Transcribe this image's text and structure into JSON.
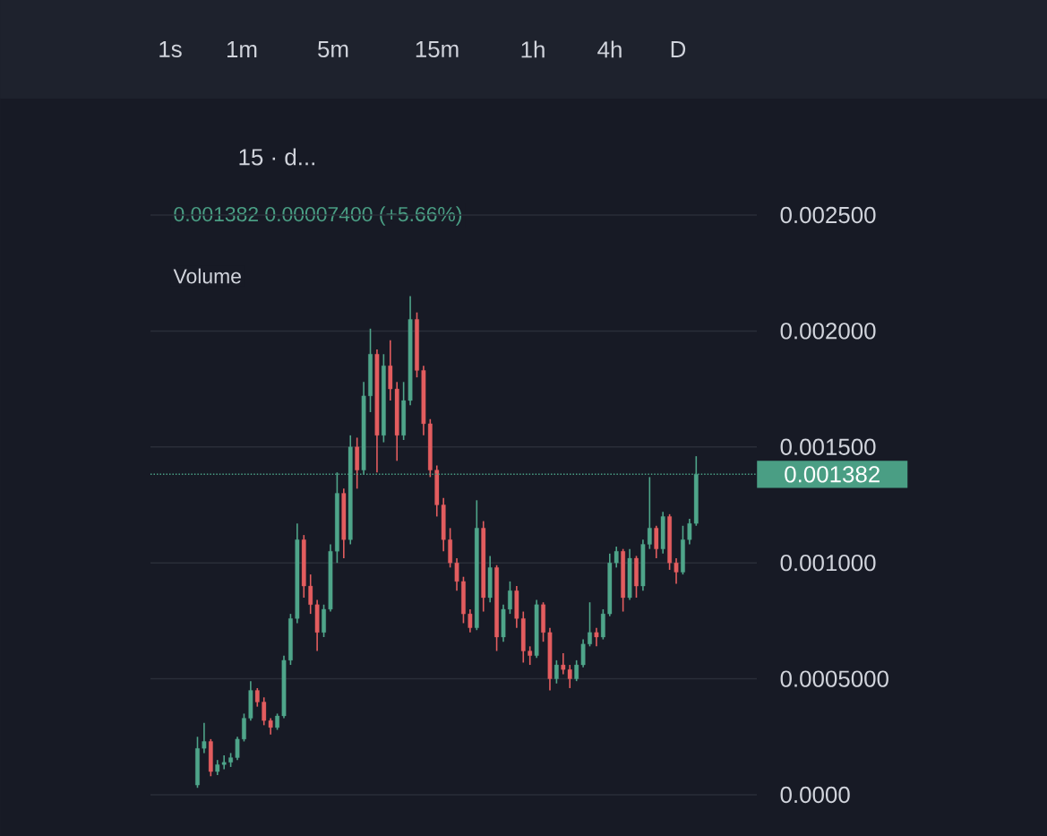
{
  "chart_data": {
    "type": "candlestick",
    "title": "15 · d...",
    "annotations": [
      "1s",
      "1m",
      "5m",
      "15m",
      "1h",
      "4h",
      "D",
      "0.001382  0.00007400 (+5.66%)",
      "Volume"
    ],
    "categories": [
      null,
      null,
      null,
      null,
      null,
      null,
      null,
      null,
      null,
      null,
      null,
      null,
      null,
      null,
      null,
      null,
      null,
      null,
      null,
      null,
      null,
      null,
      null,
      null,
      null,
      null,
      null,
      null,
      null,
      null,
      null,
      null,
      null,
      null,
      null,
      null,
      null,
      null,
      null,
      null,
      null,
      null,
      null,
      null,
      null,
      null,
      null,
      null,
      null,
      null,
      null,
      null,
      null,
      null,
      null,
      null,
      null,
      null,
      null,
      null,
      null,
      null,
      null,
      null,
      null,
      null,
      null,
      null,
      null,
      null,
      null,
      null,
      null,
      null,
      null,
      null
    ],
    "ohlc": [
      [
        4.2e-05,
        0.00025,
        3e-05,
        0.0002
      ],
      [
        0.0002,
        0.00031,
        0.00018,
        0.00023
      ],
      [
        0.00023,
        0.00024,
        8e-05,
        0.0001
      ],
      [
        0.0001,
        0.00015,
        8.5e-05,
        0.00013
      ],
      [
        0.00013,
        0.00017,
        0.00011,
        0.00014
      ],
      [
        0.00014,
        0.00018,
        0.00012,
        0.00016
      ],
      [
        0.00016,
        0.00025,
        0.00015,
        0.00024
      ],
      [
        0.00024,
        0.00035,
        0.00023,
        0.00033
      ],
      [
        0.00033,
        0.00049,
        0.00032,
        0.00045
      ],
      [
        0.00045,
        0.00046,
        0.00038,
        0.0004
      ],
      [
        0.0004,
        0.00042,
        0.0003,
        0.00032
      ],
      [
        0.00032,
        0.00033,
        0.00026,
        0.00029
      ],
      [
        0.00029,
        0.00035,
        0.00028,
        0.00034
      ],
      [
        0.00034,
        0.0006,
        0.00033,
        0.00058
      ],
      [
        0.00058,
        0.00078,
        0.00056,
        0.00076
      ],
      [
        0.00076,
        0.00117,
        0.00074,
        0.0011
      ],
      [
        0.0011,
        0.00112,
        0.00085,
        0.0009
      ],
      [
        0.0009,
        0.00095,
        0.00078,
        0.00082
      ],
      [
        0.00082,
        0.00084,
        0.00062,
        0.0007
      ],
      [
        0.0007,
        0.00082,
        0.00068,
        0.0008
      ],
      [
        0.0008,
        0.00108,
        0.00079,
        0.00105
      ],
      [
        0.00105,
        0.00139,
        0.001,
        0.0013
      ],
      [
        0.0013,
        0.00132,
        0.00102,
        0.0011
      ],
      [
        0.0011,
        0.00155,
        0.00108,
        0.0015
      ],
      [
        0.0015,
        0.00154,
        0.00132,
        0.0014
      ],
      [
        0.0014,
        0.00178,
        0.00138,
        0.00172
      ],
      [
        0.00172,
        0.00201,
        0.00165,
        0.0019
      ],
      [
        0.0019,
        0.00192,
        0.00139,
        0.00155
      ],
      [
        0.00155,
        0.0019,
        0.00152,
        0.00185
      ],
      [
        0.00185,
        0.00196,
        0.0017,
        0.00175
      ],
      [
        0.00175,
        0.00178,
        0.00144,
        0.00155
      ],
      [
        0.00155,
        0.00178,
        0.00153,
        0.0017
      ],
      [
        0.0017,
        0.00215,
        0.00168,
        0.00205
      ],
      [
        0.00205,
        0.00208,
        0.0018,
        0.00183
      ],
      [
        0.00183,
        0.00185,
        0.00155,
        0.0016
      ],
      [
        0.0016,
        0.00162,
        0.00137,
        0.0014
      ],
      [
        0.0014,
        0.00142,
        0.0012,
        0.00125
      ],
      [
        0.00125,
        0.00128,
        0.00105,
        0.0011
      ],
      [
        0.0011,
        0.00115,
        0.00098,
        0.001
      ],
      [
        0.001,
        0.00102,
        0.00088,
        0.00092
      ],
      [
        0.00092,
        0.00094,
        0.00074,
        0.00078
      ],
      [
        0.00078,
        0.0008,
        0.0007,
        0.00072
      ],
      [
        0.00072,
        0.00127,
        0.00071,
        0.00115
      ],
      [
        0.00115,
        0.00118,
        0.00079,
        0.00085
      ],
      [
        0.00085,
        0.00103,
        0.00083,
        0.00098
      ],
      [
        0.00098,
        0.00099,
        0.00062,
        0.00068
      ],
      [
        0.00068,
        0.00082,
        0.00066,
        0.0008
      ],
      [
        0.0008,
        0.00092,
        0.00078,
        0.00088
      ],
      [
        0.00088,
        0.0009,
        0.00072,
        0.00076
      ],
      [
        0.00076,
        0.00079,
        0.00057,
        0.00062
      ],
      [
        0.00062,
        0.00064,
        0.00056,
        0.0006
      ],
      [
        0.0006,
        0.00084,
        0.00059,
        0.00082
      ],
      [
        0.00082,
        0.00083,
        0.00066,
        0.0007
      ],
      [
        0.0007,
        0.00072,
        0.00045,
        0.0005
      ],
      [
        0.0005,
        0.00058,
        0.00048,
        0.00056
      ],
      [
        0.00056,
        0.00061,
        0.00052,
        0.00054
      ],
      [
        0.00054,
        0.00056,
        0.00046,
        0.0005
      ],
      [
        0.0005,
        0.00058,
        0.00049,
        0.00056
      ],
      [
        0.00056,
        0.00067,
        0.00055,
        0.00065
      ],
      [
        0.00065,
        0.00083,
        0.00064,
        0.0007
      ],
      [
        0.0007,
        0.00072,
        0.00064,
        0.00068
      ],
      [
        0.00068,
        0.0008,
        0.00067,
        0.00078
      ],
      [
        0.00078,
        0.00104,
        0.00077,
        0.001
      ],
      [
        0.001,
        0.00107,
        0.00098,
        0.00105
      ],
      [
        0.00105,
        0.00106,
        0.00079,
        0.00085
      ],
      [
        0.00085,
        0.00106,
        0.00084,
        0.00102
      ],
      [
        0.00102,
        0.00103,
        0.00085,
        0.0009
      ],
      [
        0.0009,
        0.0011,
        0.00088,
        0.00108
      ],
      [
        0.00108,
        0.00137,
        0.00106,
        0.00115
      ],
      [
        0.00115,
        0.00116,
        0.00102,
        0.00106
      ],
      [
        0.00106,
        0.00122,
        0.00104,
        0.0012
      ],
      [
        0.0012,
        0.00121,
        0.00097,
        0.001
      ],
      [
        0.001,
        0.00102,
        0.00091,
        0.00096
      ],
      [
        0.00096,
        0.00116,
        0.00095,
        0.0011
      ],
      [
        0.0011,
        0.00119,
        0.00108,
        0.00117
      ],
      [
        0.00117,
        0.00146,
        0.00116,
        0.001382
      ]
    ],
    "colors": [
      "#4fa58a",
      "#4fa58a",
      "#e35d5f",
      "#4fa58a",
      "#4fa58a",
      "#4fa58a",
      "#4fa58a",
      "#4fa58a",
      "#4fa58a",
      "#e35d5f",
      "#e35d5f",
      "#e35d5f",
      "#4fa58a",
      "#4fa58a",
      "#4fa58a",
      "#4fa58a",
      "#e35d5f",
      "#e35d5f",
      "#e35d5f",
      "#4fa58a",
      "#4fa58a",
      "#4fa58a",
      "#e35d5f",
      "#4fa58a",
      "#e35d5f",
      "#4fa58a",
      "#4fa58a",
      "#e35d5f",
      "#4fa58a",
      "#e35d5f",
      "#e35d5f",
      "#4fa58a",
      "#4fa58a",
      "#e35d5f",
      "#e35d5f",
      "#e35d5f",
      "#e35d5f",
      "#e35d5f",
      "#e35d5f",
      "#e35d5f",
      "#e35d5f",
      "#e35d5f",
      "#4fa58a",
      "#e35d5f",
      "#4fa58a",
      "#e35d5f",
      "#4fa58a",
      "#4fa58a",
      "#e35d5f",
      "#e35d5f",
      "#e35d5f",
      "#4fa58a",
      "#e35d5f",
      "#e35d5f",
      "#4fa58a",
      "#e35d5f",
      "#e35d5f",
      "#4fa58a",
      "#4fa58a",
      "#4fa58a",
      "#e35d5f",
      "#4fa58a",
      "#4fa58a",
      "#4fa58a",
      "#e35d5f",
      "#4fa58a",
      "#e35d5f",
      "#4fa58a",
      "#4fa58a",
      "#e35d5f",
      "#4fa58a",
      "#e35d5f",
      "#e35d5f",
      "#4fa58a",
      "#4fa58a",
      "#4fa58a"
    ],
    "ylim": [
      0,
      0.0025
    ],
    "yticks": [
      {
        "value": 0,
        "label": "0.0000"
      },
      {
        "value": 0.0005,
        "label": "0.0005000"
      },
      {
        "value": 0.001,
        "label": "0.001000"
      },
      {
        "value": 0.0015,
        "label": "0.001500"
      },
      {
        "value": 0.002,
        "label": "0.002000"
      },
      {
        "value": 0.0025,
        "label": "0.002500"
      }
    ],
    "grid": "y",
    "ref_lines": [
      {
        "axis": "y",
        "value": 0.001382,
        "label": "0.001382",
        "color": "#4a9e84",
        "line_style": "dotted"
      }
    ]
  }
}
